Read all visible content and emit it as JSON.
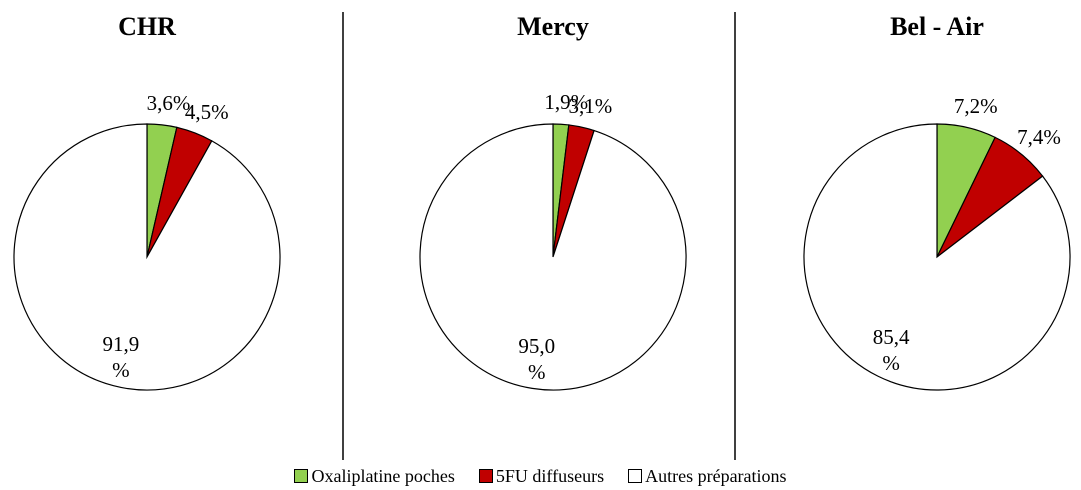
{
  "chart_data": [
    {
      "type": "pie",
      "title": "CHR",
      "categories": [
        "Oxaliplatine poches",
        "5FU diffuseurs",
        "Autres préparations"
      ],
      "values": [
        3.6,
        4.5,
        91.9
      ],
      "value_labels": [
        "3,6%",
        "4,5%",
        "91,9 %"
      ],
      "colors": [
        "#92d050",
        "#c00000",
        "#ffffff"
      ]
    },
    {
      "type": "pie",
      "title": "Mercy",
      "categories": [
        "Oxaliplatine poches",
        "5FU diffuseurs",
        "Autres préparations"
      ],
      "values": [
        1.9,
        3.1,
        95.0
      ],
      "value_labels": [
        "1,9%",
        "3,1%",
        "95,0 %"
      ],
      "colors": [
        "#92d050",
        "#c00000",
        "#ffffff"
      ]
    },
    {
      "type": "pie",
      "title": "Bel - Air",
      "categories": [
        "Oxaliplatine poches",
        "5FU diffuseurs",
        "Autres préparations"
      ],
      "values": [
        7.2,
        7.4,
        85.4
      ],
      "value_labels": [
        "7,2%",
        "7,4%",
        "85,4 %"
      ],
      "colors": [
        "#92d050",
        "#c00000",
        "#ffffff"
      ]
    }
  ]
}
